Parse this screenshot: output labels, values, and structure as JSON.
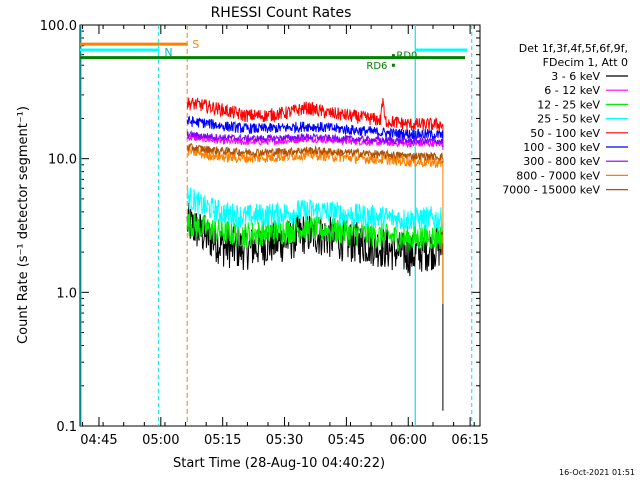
{
  "chart_data": {
    "type": "line",
    "title": "RHESSI Count Rates",
    "xlabel": "Start Time (28-Aug-10 04:40:22)",
    "ylabel": "Count Rate (s⁻¹ detector segment⁻¹)",
    "yscale": "log",
    "ylim": [
      0.1,
      100.0
    ],
    "xlim_minutes": [
      0.0,
      97.0
    ],
    "x_ticks": [
      {
        "label": "04:45",
        "minutes": 4.6
      },
      {
        "label": "05:00",
        "minutes": 19.6
      },
      {
        "label": "05:15",
        "minutes": 34.6
      },
      {
        "label": "05:30",
        "minutes": 49.6
      },
      {
        "label": "05:45",
        "minutes": 64.6
      },
      {
        "label": "06:00",
        "minutes": 79.6
      },
      {
        "label": "06:15",
        "minutes": 94.6
      }
    ],
    "y_ticks": [
      {
        "label": "0.1",
        "value": 0.1
      },
      {
        "label": "1.0",
        "value": 1.0
      },
      {
        "label": "10.0",
        "value": 10.0
      },
      {
        "label": "100.0",
        "value": 100.0
      }
    ],
    "legend": {
      "header": [
        "Det 1f,3f,4f,5f,6f,9f,",
        "FDecim 1, Att 0"
      ],
      "placement": "right"
    },
    "series": [
      {
        "name": "3 - 6 keV",
        "color": "#000000",
        "x": [
          26,
          30,
          35,
          40,
          45,
          50,
          55,
          60,
          65,
          70,
          75,
          80,
          85,
          88
        ],
        "values": [
          3.3,
          2.7,
          2.2,
          2.1,
          2.3,
          2.4,
          2.8,
          2.6,
          2.4,
          2.3,
          2.1,
          1.9,
          2.1,
          2.2
        ]
      },
      {
        "name": "6 - 12 keV",
        "color": "#ff00ff",
        "x": [
          26,
          30,
          35,
          40,
          45,
          50,
          55,
          60,
          65,
          70,
          75,
          80,
          85,
          88
        ],
        "values": [
          14.5,
          14.0,
          13.5,
          13.3,
          13.4,
          13.6,
          14.1,
          13.8,
          13.5,
          13.3,
          13.1,
          12.9,
          13.0,
          12.9
        ]
      },
      {
        "name": "12 - 25 keV",
        "color": "#00ee00",
        "x": [
          26,
          30,
          35,
          40,
          45,
          50,
          55,
          60,
          65,
          70,
          75,
          80,
          85,
          88
        ],
        "values": [
          3.3,
          3.0,
          2.8,
          2.7,
          2.8,
          2.9,
          3.0,
          2.9,
          2.8,
          2.7,
          2.6,
          2.5,
          2.6,
          2.6
        ]
      },
      {
        "name": "25 - 50 keV",
        "color": "#00ffff",
        "x": [
          26,
          30,
          35,
          40,
          45,
          50,
          55,
          60,
          65,
          70,
          75,
          80,
          85,
          88
        ],
        "values": [
          5.2,
          4.4,
          3.9,
          3.7,
          3.8,
          3.9,
          4.1,
          4.0,
          3.8,
          3.7,
          3.6,
          3.5,
          3.6,
          3.5
        ]
      },
      {
        "name": "50 - 100 keV",
        "color": "#ff0000",
        "x": [
          26,
          30,
          35,
          40,
          45,
          50,
          55,
          60,
          65,
          70,
          75,
          80,
          85,
          88
        ],
        "values": [
          26,
          25,
          23,
          21,
          21,
          22,
          24,
          22,
          21,
          20,
          19,
          18,
          18,
          18
        ]
      },
      {
        "name": "100 - 300 keV",
        "color": "#0000ff",
        "x": [
          26,
          30,
          35,
          40,
          45,
          50,
          55,
          60,
          65,
          70,
          75,
          80,
          85,
          88
        ],
        "values": [
          19,
          18.5,
          17.5,
          16.8,
          16.8,
          17.0,
          17.5,
          17.0,
          16.5,
          16.0,
          15.5,
          15.3,
          15.2,
          15.0
        ]
      },
      {
        "name": "300 - 800 keV",
        "color": "#8000ff",
        "x": [
          26,
          30,
          35,
          40,
          45,
          50,
          55,
          60,
          65,
          70,
          75,
          80,
          85,
          88
        ],
        "values": [
          15.2,
          14.8,
          14.4,
          14.2,
          14.2,
          14.3,
          14.6,
          14.3,
          14.1,
          13.9,
          13.7,
          13.6,
          13.6,
          13.5
        ]
      },
      {
        "name": "800 - 7000 keV",
        "color": "#ff8000",
        "x": [
          26,
          30,
          35,
          40,
          45,
          50,
          55,
          60,
          65,
          70,
          75,
          80,
          85,
          88
        ],
        "values": [
          11.5,
          10.8,
          10.3,
          10.1,
          10.2,
          10.4,
          10.8,
          10.5,
          10.2,
          10.0,
          9.8,
          9.5,
          9.4,
          9.2
        ]
      },
      {
        "name": "7000 - 15000 keV",
        "color": "#b05000",
        "x": [
          26,
          30,
          35,
          40,
          45,
          50,
          55,
          60,
          65,
          70,
          75,
          80,
          85,
          88
        ],
        "values": [
          12.2,
          11.8,
          11.4,
          11.2,
          11.2,
          11.3,
          11.6,
          11.3,
          11.1,
          10.9,
          10.7,
          10.5,
          10.4,
          10.3
        ]
      }
    ],
    "annotations": [
      {
        "text": "S",
        "color": "#ff8000",
        "value": 72,
        "x_start": 0.0,
        "x_end": 26.0,
        "marker_minutes": 26.0
      },
      {
        "text": "N",
        "color": "#00ffff",
        "value": 65,
        "x_start": 0.0,
        "x_end": 19.0,
        "marker_minutes": 19.0
      },
      {
        "text": "RD6",
        "color": "#008000",
        "value": 50,
        "marker_minutes": 76.0
      },
      {
        "text": "RD0",
        "color": "#008000",
        "value": 59,
        "marker_minutes": 76.0
      }
    ],
    "saa_gap_minutes": [
      81.3,
      97.0
    ],
    "night_marker_minutes": 95.0,
    "timestamp": "16-Oct-2021 01:51"
  }
}
